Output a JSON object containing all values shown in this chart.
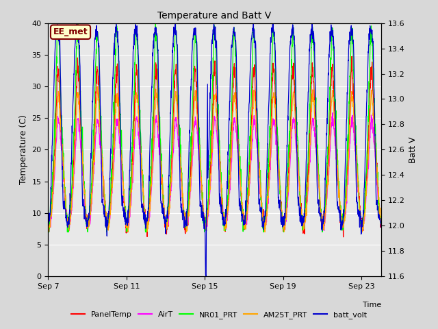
{
  "title": "Temperature and Batt V",
  "xlabel": "Time",
  "ylabel_left": "Temperature (C)",
  "ylabel_right": "Batt V",
  "annotation": "EE_met",
  "xlim_days": [
    0,
    17
  ],
  "ylim_left": [
    0,
    40
  ],
  "ylim_right": [
    11.6,
    13.6
  ],
  "x_ticks_labels": [
    "Sep 7",
    "Sep 11",
    "Sep 15",
    "Sep 19",
    "Sep 23"
  ],
  "x_ticks_pos": [
    0,
    4,
    8,
    12,
    16
  ],
  "y_ticks_left": [
    0,
    5,
    10,
    15,
    20,
    25,
    30,
    35,
    40
  ],
  "y_ticks_right": [
    11.6,
    11.8,
    12.0,
    12.2,
    12.4,
    12.6,
    12.8,
    13.0,
    13.2,
    13.4,
    13.6
  ],
  "series_colors": {
    "PanelTemp": "#ff0000",
    "AirT": "#ff00ff",
    "NR01_PRT": "#00ff00",
    "AM25T_PRT": "#ffa500",
    "batt_volt": "#0000cd"
  },
  "legend_order": [
    "PanelTemp",
    "AirT",
    "NR01_PRT",
    "AM25T_PRT",
    "batt_volt"
  ],
  "num_days": 17,
  "fig_bg_color": "#d8d8d8",
  "plot_bg_color": "#e8e8e8",
  "annotation_bg": "#ffffcc",
  "annotation_border": "#800000",
  "grid_color": "#ffffff",
  "title_fontsize": 10,
  "label_fontsize": 9,
  "tick_fontsize": 8
}
